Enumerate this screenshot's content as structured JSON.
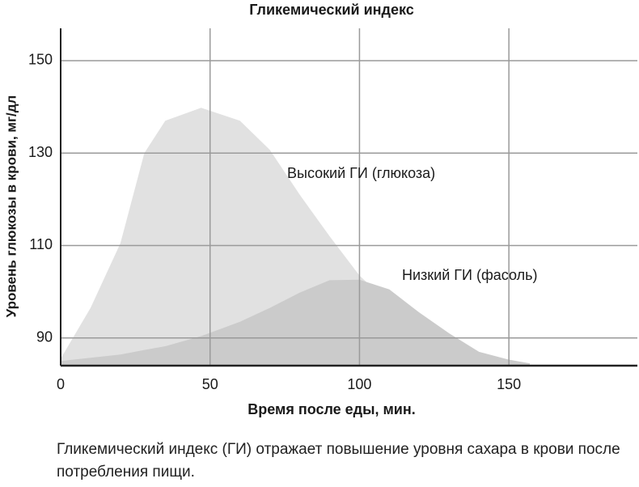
{
  "chart_data": {
    "type": "area",
    "title": "Гликемический индекс",
    "x_label": "Время после еды, мин.",
    "y_label": "Уровень глюкозы в крови, мг/дл",
    "x": [
      0,
      10,
      20,
      28,
      35,
      47,
      60,
      70,
      80,
      90,
      100,
      110,
      120,
      130,
      140,
      150,
      157
    ],
    "series": [
      {
        "name": "Высокий ГИ (глюкоза)",
        "color": "#e1e1e1",
        "values": [
          85.5,
          96.5,
          110.5,
          130,
          137,
          139.8,
          137,
          130.7,
          121,
          112,
          103.5,
          97.5,
          92,
          88.6,
          86,
          84.8,
          84.3
        ]
      },
      {
        "name": "Низкий ГИ (фасоль)",
        "color": "#cbcbcb",
        "values": [
          85,
          85.7,
          86.4,
          87.4,
          88.2,
          90.4,
          93.5,
          96.5,
          99.8,
          102.5,
          102.6,
          100.5,
          95.5,
          91,
          87,
          85.3,
          84.5
        ]
      }
    ],
    "xlim": [
      0,
      193
    ],
    "ylim": [
      84,
      157
    ],
    "xticks": [
      0,
      50,
      100,
      150
    ],
    "yticks": [
      90,
      110,
      130,
      150
    ],
    "grid": true,
    "caption": "Гликемический индекс (ГИ) отражает повышение уровня сахара в крови после потребления пищи."
  }
}
